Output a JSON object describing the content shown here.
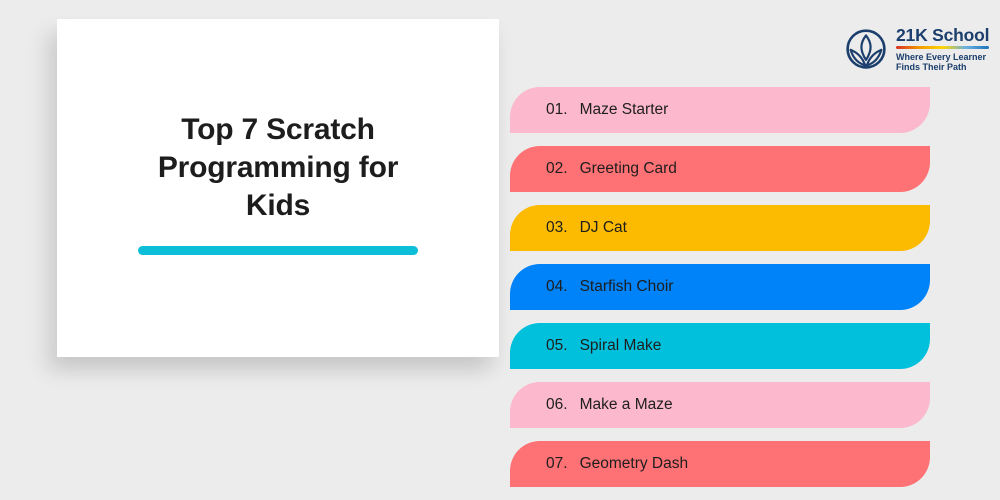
{
  "page": {
    "background_color": "#ececec"
  },
  "card": {
    "title": "Top 7 Scratch Programming for Kids",
    "underline_color": "#0cbed8"
  },
  "logo": {
    "name": "21K School",
    "tagline_line1": "Where Every Learner",
    "tagline_line2": "Finds Their Path",
    "brand_color": "#1b3e6c",
    "gradient_colors": [
      "#d93025",
      "#f29900",
      "#ffd500",
      "#6ab2e2",
      "#1b75bc"
    ]
  },
  "list": {
    "items": [
      {
        "num": "01.",
        "label": "Maze Starter",
        "color": "#fcb8cc"
      },
      {
        "num": "02.",
        "label": "Greeting Card",
        "color": "#fe7174"
      },
      {
        "num": "03.",
        "label": "DJ Cat",
        "color": "#fcba00"
      },
      {
        "num": "04.",
        "label": "Starfish Choir",
        "color": "#0082f8"
      },
      {
        "num": "05.",
        "label": "Spiral Make",
        "color": "#00c0dc"
      },
      {
        "num": "06.",
        "label": "Make a Maze",
        "color": "#fcb8cc"
      },
      {
        "num": "07.",
        "label": "Geometry Dash",
        "color": "#fe7174"
      }
    ]
  }
}
